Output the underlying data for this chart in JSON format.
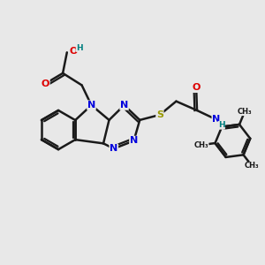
{
  "bg_color": "#e8e8e8",
  "bond_color": "#1a1a1a",
  "bond_width": 1.8,
  "atom_colors": {
    "N_blue": "#0000dd",
    "O_red": "#dd0000",
    "S_yellow": "#999900",
    "H_teal": "#008080",
    "C_black": "#1a1a1a"
  },
  "figsize": [
    3.0,
    3.0
  ],
  "dpi": 100,
  "xlim": [
    0,
    10
  ],
  "ylim": [
    0,
    10
  ]
}
